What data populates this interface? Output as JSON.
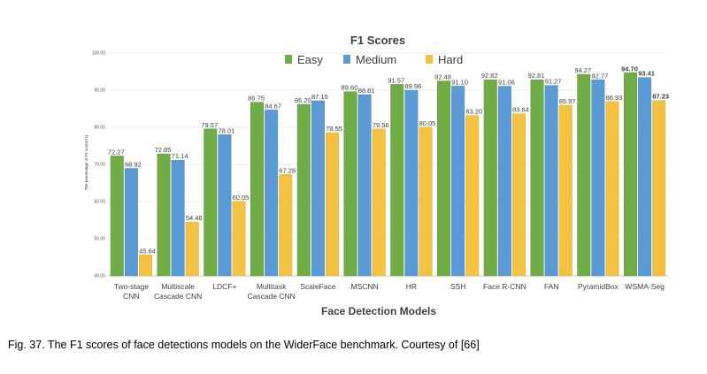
{
  "chart_data": {
    "type": "bar",
    "title": "F1 Scores",
    "xlabel": "Face Detection Models",
    "ylabel": "The percentage of F1 score(%)",
    "ylim": [
      40,
      100
    ],
    "yticks": [
      "40.00",
      "50.00",
      "60.00",
      "70.00",
      "80.00",
      "90.00",
      "100.00"
    ],
    "legend_position": "top",
    "categories": [
      [
        "Two-stage",
        "CNN"
      ],
      [
        "Multiscale",
        "Cascade CNN"
      ],
      [
        "LDCF+"
      ],
      [
        "Multitask",
        "Cascade CNN"
      ],
      [
        "ScaleFace"
      ],
      [
        "MSCNN"
      ],
      [
        "HR"
      ],
      [
        "SSH"
      ],
      [
        "Face R-CNN"
      ],
      [
        "FAN"
      ],
      [
        "PyramidBox"
      ],
      [
        "WSMA-Seg"
      ]
    ],
    "series": [
      {
        "name": "Easy",
        "color": "#70ad47",
        "values": [
          72.27,
          72.85,
          79.57,
          86.75,
          86.2,
          89.6,
          91.57,
          92.48,
          92.82,
          92.81,
          94.27,
          94.7
        ],
        "labels": [
          "72.27",
          "72.85",
          "79.57",
          "86.75",
          "86.20",
          "89.60",
          "91.57",
          "92.48",
          "92.82",
          "92.81",
          "94.27",
          "94.70"
        ]
      },
      {
        "name": "Medium",
        "color": "#5b9bd5",
        "values": [
          68.92,
          71.14,
          78.01,
          84.67,
          87.15,
          88.81,
          89.96,
          91.1,
          91.06,
          91.27,
          92.77,
          93.41
        ],
        "labels": [
          "68.92",
          "71.14",
          "78.01",
          "84.67",
          "87.15",
          "88.81",
          "89.96",
          "91.10",
          "91.06",
          "91.27",
          "92.77",
          "93.41"
        ]
      },
      {
        "name": "Hard",
        "color": "#f4c242",
        "values": [
          45.64,
          54.48,
          60.05,
          67.28,
          78.55,
          79.56,
          80.05,
          83.2,
          83.64,
          85.97,
          86.93,
          87.23
        ],
        "labels": [
          "45.64",
          "54.48",
          "60.05",
          "67.28",
          "78.55",
          "79.56",
          "80.05",
          "83.20",
          "83.64",
          "85.97",
          "86.93",
          "87.23"
        ]
      }
    ],
    "bold_category_index": 11
  },
  "caption": "Fig. 37. The F1 scores of face detections models on the WiderFace benchmark. Courtesy of [66]"
}
